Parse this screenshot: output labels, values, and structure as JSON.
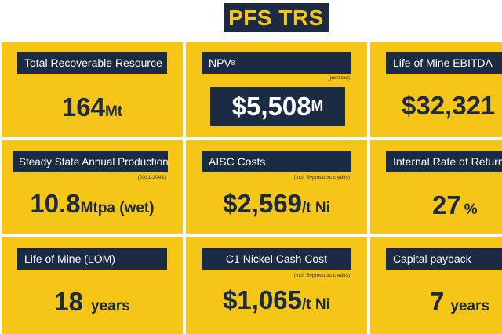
{
  "title": "PFS TRS",
  "cards": {
    "resource": {
      "label": "Total Recoverable Resource",
      "value": "164",
      "unit": "Mt"
    },
    "npv": {
      "label": "NPV",
      "label_sup": "8",
      "note": "(post-tax)",
      "value": "$5,508",
      "unit": "M"
    },
    "ebitda": {
      "label": "Life of Mine EBITDA",
      "value": "$32,321"
    },
    "production": {
      "label": "Steady State Annual Production",
      "note": "(2031-2043)",
      "value": "10.8",
      "unit": "Mtpa (wet)"
    },
    "aisc": {
      "label": "AISC Costs",
      "note": "(incl. Byproducts credits)",
      "value": "$2,569",
      "unit": "/t Ni"
    },
    "irr": {
      "label": "Internal Rate of Return",
      "value": "27",
      "unit": "%"
    },
    "lom": {
      "label": "Life of Mine (LOM)",
      "value": "18",
      "unit": "years"
    },
    "c1": {
      "label": "C1 Nickel Cash Cost",
      "note": "(incl. Byproducts credits)",
      "value": "$1,065",
      "unit": "/t Ni"
    },
    "payback": {
      "label": "Capital payback",
      "value": "7",
      "unit": "years"
    }
  },
  "colors": {
    "accent": "#f5c518",
    "navy": "#1c2b44"
  }
}
